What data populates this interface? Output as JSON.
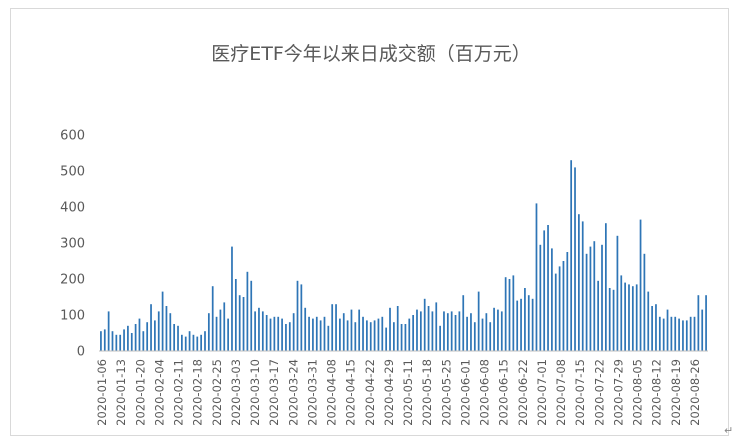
{
  "chart_data": {
    "type": "bar",
    "title": "医疗ETF今年以来日成交额（百万元）",
    "xlabel": "",
    "ylabel": "",
    "ylim": [
      0,
      600
    ],
    "yticks": [
      0,
      100,
      200,
      300,
      400,
      500,
      600
    ],
    "grid": false,
    "legend": "none",
    "bar_color": "#2e75b6",
    "x_tick_labels": [
      "2020-01-06",
      "2020-01-13",
      "2020-01-20",
      "2020-02-04",
      "2020-02-11",
      "2020-02-18",
      "2020-02-25",
      "2020-03-03",
      "2020-03-10",
      "2020-03-17",
      "2020-03-24",
      "2020-03-31",
      "2020-04-08",
      "2020-04-15",
      "2020-04-22",
      "2020-04-29",
      "2020-05-11",
      "2020-05-18",
      "2020-05-25",
      "2020-06-01",
      "2020-06-08",
      "2020-06-15",
      "2020-06-22",
      "2020-07-01",
      "2020-07-08",
      "2020-07-15",
      "2020-07-22",
      "2020-07-29",
      "2020-08-05",
      "2020-08-12",
      "2020-08-19",
      "2020-08-26"
    ],
    "values": [
      55,
      60,
      110,
      55,
      45,
      45,
      60,
      70,
      50,
      75,
      90,
      55,
      80,
      130,
      85,
      110,
      165,
      125,
      105,
      75,
      70,
      45,
      40,
      55,
      45,
      40,
      45,
      55,
      105,
      180,
      95,
      115,
      135,
      90,
      290,
      200,
      155,
      150,
      220,
      195,
      110,
      120,
      110,
      100,
      90,
      95,
      95,
      90,
      75,
      80,
      105,
      195,
      185,
      120,
      95,
      90,
      95,
      85,
      95,
      70,
      130,
      130,
      90,
      105,
      85,
      115,
      80,
      115,
      95,
      85,
      80,
      85,
      90,
      95,
      65,
      120,
      80,
      125,
      75,
      75,
      90,
      100,
      115,
      110,
      145,
      125,
      110,
      135,
      70,
      110,
      105,
      110,
      100,
      110,
      155,
      95,
      105,
      80,
      165,
      90,
      105,
      80,
      120,
      115,
      110,
      205,
      200,
      210,
      140,
      145,
      175,
      155,
      145,
      410,
      295,
      335,
      350,
      285,
      215,
      235,
      250,
      275,
      530,
      510,
      380,
      360,
      270,
      290,
      305,
      195,
      295,
      355,
      175,
      170,
      320,
      210,
      190,
      185,
      180,
      185,
      365,
      270,
      165,
      125,
      130,
      95,
      90,
      115,
      95,
      95,
      90,
      85,
      85,
      95,
      95,
      155,
      115,
      155
    ]
  },
  "page": {
    "paragraph_mark": "↵"
  }
}
